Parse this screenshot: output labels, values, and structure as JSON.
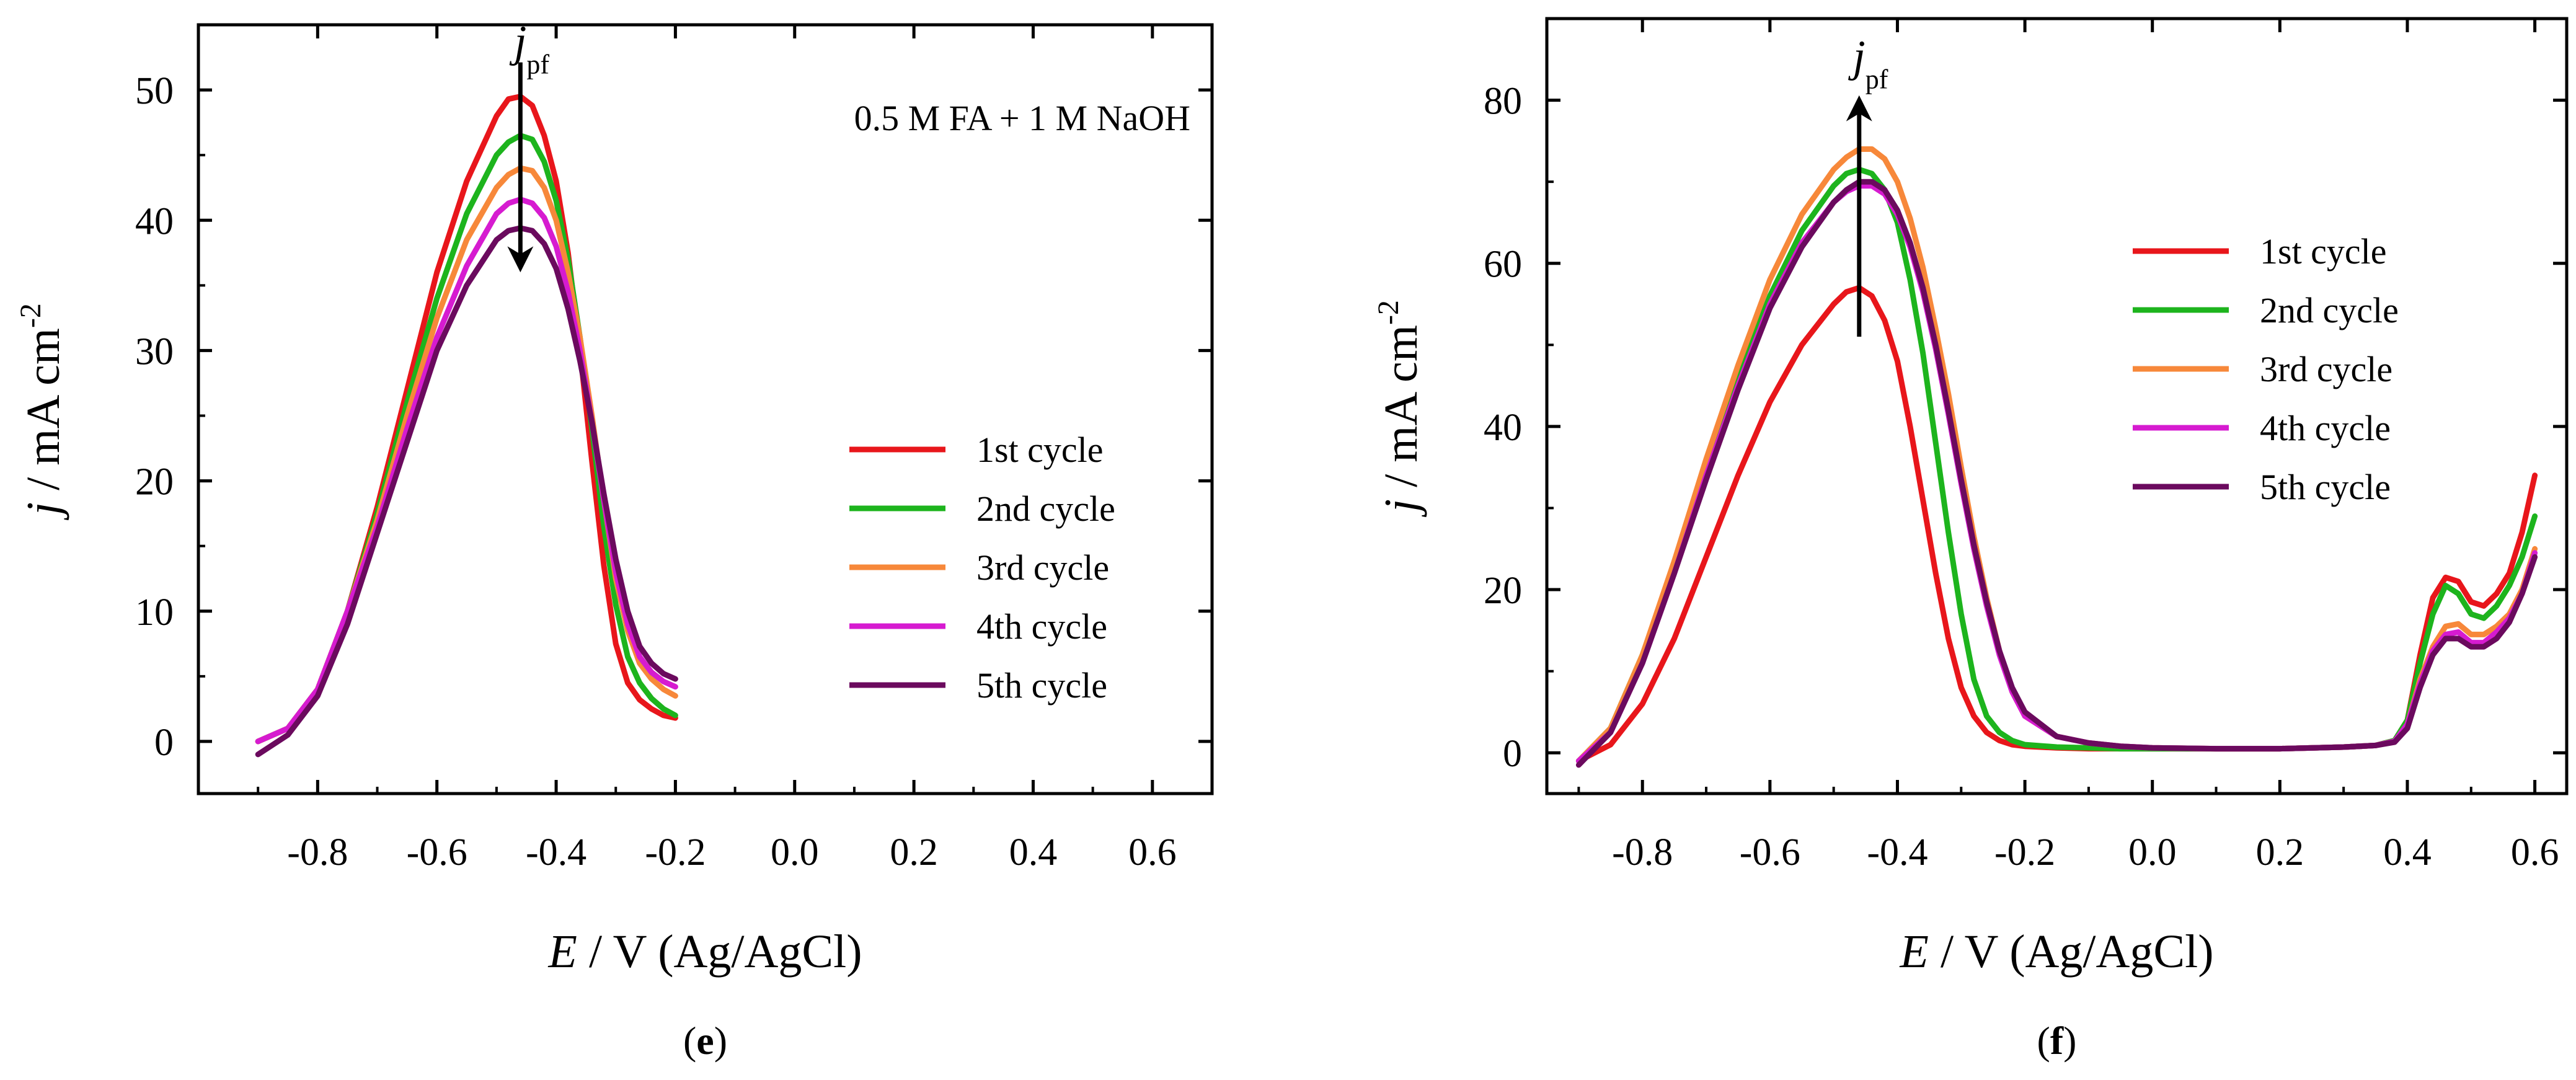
{
  "chart_data": [
    {
      "type": "line",
      "panel_label": "(e)",
      "panel_letter": "e",
      "annotation": "0.5 M FA + 1 M NaOH",
      "arrow_label": "j",
      "arrow_label_sub": "pf",
      "arrow_direction": "down",
      "xlabel_italic": "E",
      "xlabel_rest": " / V (Ag/AgCl)",
      "ylabel_italic": "j",
      "ylabel_rest": " / mA cm",
      "ylabel_sup": "-2",
      "xlim": [
        -1.0,
        0.7
      ],
      "ylim": [
        -4,
        55
      ],
      "xticks": [
        -0.8,
        -0.6,
        -0.4,
        -0.2,
        0.0,
        0.2,
        0.4,
        0.6
      ],
      "xtick_labels": [
        "-0.8",
        "-0.6",
        "-0.4",
        "-0.2",
        "0.0",
        "0.2",
        "0.4",
        "0.6"
      ],
      "yticks": [
        0,
        10,
        20,
        30,
        40,
        50
      ],
      "ytick_labels": [
        "0",
        "10",
        "20",
        "30",
        "40",
        "50"
      ],
      "legend_position": "center-right",
      "series": [
        {
          "name": "1st cycle",
          "color": "#e8161b",
          "x": [
            -0.9,
            -0.85,
            -0.8,
            -0.75,
            -0.7,
            -0.65,
            -0.6,
            -0.55,
            -0.5,
            -0.48,
            -0.46,
            -0.44,
            -0.42,
            -0.4,
            -0.38,
            -0.36,
            -0.34,
            -0.32,
            -0.3,
            -0.28,
            -0.26,
            -0.24,
            -0.22,
            -0.2
          ],
          "y": [
            0,
            1,
            4,
            10,
            18,
            27,
            36,
            43,
            48,
            49.3,
            49.5,
            48.8,
            46.5,
            43,
            37.5,
            30,
            21.5,
            13.5,
            7.5,
            4.5,
            3.2,
            2.5,
            2.0,
            1.8
          ]
        },
        {
          "name": "2nd cycle",
          "color": "#1db41d",
          "x": [
            -0.9,
            -0.85,
            -0.8,
            -0.75,
            -0.7,
            -0.65,
            -0.6,
            -0.55,
            -0.5,
            -0.48,
            -0.46,
            -0.44,
            -0.42,
            -0.4,
            -0.38,
            -0.36,
            -0.34,
            -0.32,
            -0.3,
            -0.28,
            -0.26,
            -0.24,
            -0.22,
            -0.2
          ],
          "y": [
            0,
            1,
            4,
            10,
            17.5,
            26,
            34,
            40.5,
            45,
            46,
            46.5,
            46.2,
            44.5,
            41.5,
            37,
            31,
            24,
            16.5,
            10.5,
            6.5,
            4.5,
            3.3,
            2.5,
            2.0
          ]
        },
        {
          "name": "3rd cycle",
          "color": "#f7883a",
          "x": [
            -0.9,
            -0.85,
            -0.8,
            -0.75,
            -0.7,
            -0.65,
            -0.6,
            -0.55,
            -0.5,
            -0.48,
            -0.46,
            -0.44,
            -0.42,
            -0.4,
            -0.38,
            -0.36,
            -0.34,
            -0.32,
            -0.3,
            -0.28,
            -0.26,
            -0.24,
            -0.22,
            -0.2
          ],
          "y": [
            0,
            1,
            4,
            10,
            17,
            25,
            32.5,
            38.5,
            42.5,
            43.5,
            44,
            43.8,
            42.5,
            40,
            36,
            31,
            25,
            18.5,
            12.5,
            8.5,
            6,
            4.8,
            4,
            3.5
          ]
        },
        {
          "name": "4th cycle",
          "color": "#d61bd0",
          "x": [
            -0.9,
            -0.85,
            -0.8,
            -0.75,
            -0.7,
            -0.65,
            -0.6,
            -0.55,
            -0.5,
            -0.48,
            -0.46,
            -0.44,
            -0.42,
            -0.4,
            -0.38,
            -0.36,
            -0.34,
            -0.32,
            -0.3,
            -0.28,
            -0.26,
            -0.24,
            -0.22,
            -0.2
          ],
          "y": [
            0,
            1,
            4,
            10,
            16.5,
            24,
            31,
            36.5,
            40.5,
            41.3,
            41.6,
            41.3,
            40.2,
            38,
            34.5,
            30,
            24.5,
            18.5,
            13,
            9,
            6.5,
            5.3,
            4.6,
            4.2
          ]
        },
        {
          "name": "5th cycle",
          "color": "#6b0a5e",
          "x": [
            -0.9,
            -0.85,
            -0.8,
            -0.75,
            -0.7,
            -0.65,
            -0.6,
            -0.55,
            -0.5,
            -0.48,
            -0.46,
            -0.44,
            -0.42,
            -0.4,
            -0.38,
            -0.36,
            -0.34,
            -0.32,
            -0.3,
            -0.28,
            -0.26,
            -0.24,
            -0.22,
            -0.2
          ],
          "y": [
            -1,
            0.5,
            3.5,
            9,
            16,
            23,
            30,
            35,
            38.5,
            39.2,
            39.4,
            39.2,
            38.2,
            36.3,
            33.2,
            29.2,
            24.5,
            19,
            14,
            10,
            7.3,
            6,
            5.2,
            4.8
          ]
        }
      ]
    },
    {
      "type": "line",
      "panel_label": "(f)",
      "panel_letter": "f",
      "annotation": "",
      "arrow_label": "j",
      "arrow_label_sub": "pf",
      "arrow_direction": "up",
      "xlabel_italic": "E",
      "xlabel_rest": " / V (Ag/AgCl)",
      "ylabel_italic": "j",
      "ylabel_rest": " / mA cm",
      "ylabel_sup": "-2",
      "xlim": [
        -0.95,
        0.65
      ],
      "ylim": [
        -5,
        90
      ],
      "xticks": [
        -0.8,
        -0.6,
        -0.4,
        -0.2,
        0.0,
        0.2,
        0.4,
        0.6
      ],
      "xtick_labels": [
        "-0.8",
        "-0.6",
        "-0.4",
        "-0.2",
        "0.0",
        "0.2",
        "0.4",
        "0.6"
      ],
      "yticks": [
        0,
        20,
        40,
        60,
        80
      ],
      "ytick_labels": [
        "0",
        "20",
        "40",
        "60",
        "80"
      ],
      "legend_position": "center-right",
      "series": [
        {
          "name": "1st cycle",
          "color": "#e8161b",
          "x": [
            -0.9,
            -0.85,
            -0.8,
            -0.75,
            -0.7,
            -0.65,
            -0.6,
            -0.55,
            -0.5,
            -0.48,
            -0.46,
            -0.44,
            -0.42,
            -0.4,
            -0.38,
            -0.36,
            -0.34,
            -0.32,
            -0.3,
            -0.28,
            -0.26,
            -0.24,
            -0.22,
            -0.2,
            -0.15,
            -0.1,
            -0.05,
            0.0,
            0.1,
            0.2,
            0.3,
            0.35,
            0.38,
            0.4,
            0.42,
            0.44,
            0.46,
            0.48,
            0.5,
            0.52,
            0.54,
            0.56,
            0.58,
            0.6
          ],
          "y": [
            -1,
            1,
            6,
            14,
            24,
            34,
            43,
            50,
            55,
            56.5,
            57,
            56,
            53,
            48,
            40,
            31,
            22,
            14,
            8,
            4.5,
            2.5,
            1.5,
            1.0,
            0.8,
            0.6,
            0.5,
            0.5,
            0.5,
            0.5,
            0.5,
            0.7,
            0.9,
            1.5,
            4,
            12,
            19,
            21.5,
            21,
            18.5,
            18,
            19.5,
            22,
            27,
            34
          ]
        },
        {
          "name": "2nd cycle",
          "color": "#1db41d",
          "x": [
            -0.9,
            -0.85,
            -0.8,
            -0.75,
            -0.7,
            -0.65,
            -0.6,
            -0.55,
            -0.5,
            -0.48,
            -0.46,
            -0.44,
            -0.42,
            -0.4,
            -0.38,
            -0.36,
            -0.34,
            -0.32,
            -0.3,
            -0.28,
            -0.26,
            -0.24,
            -0.22,
            -0.2,
            -0.15,
            -0.1,
            -0.05,
            0.0,
            0.1,
            0.2,
            0.3,
            0.35,
            0.38,
            0.4,
            0.42,
            0.44,
            0.46,
            0.48,
            0.5,
            0.52,
            0.54,
            0.56,
            0.58,
            0.6
          ],
          "y": [
            -1,
            3,
            12,
            23,
            35,
            46,
            56,
            64,
            69.5,
            71,
            71.5,
            71,
            69,
            65,
            58,
            49,
            38,
            27,
            17,
            9,
            4.5,
            2.5,
            1.5,
            1.0,
            0.7,
            0.6,
            0.5,
            0.5,
            0.5,
            0.5,
            0.7,
            0.9,
            1.5,
            4,
            11,
            17,
            20.5,
            19.5,
            17,
            16.5,
            18,
            20.5,
            24,
            29
          ]
        },
        {
          "name": "3rd cycle",
          "color": "#f7883a",
          "x": [
            -0.9,
            -0.85,
            -0.8,
            -0.75,
            -0.7,
            -0.65,
            -0.6,
            -0.55,
            -0.5,
            -0.48,
            -0.46,
            -0.44,
            -0.42,
            -0.4,
            -0.38,
            -0.36,
            -0.34,
            -0.32,
            -0.3,
            -0.28,
            -0.26,
            -0.24,
            -0.22,
            -0.2,
            -0.15,
            -0.1,
            -0.05,
            0.0,
            0.1,
            0.2,
            0.3,
            0.35,
            0.38,
            0.4,
            0.42,
            0.44,
            0.46,
            0.48,
            0.5,
            0.52,
            0.54,
            0.56,
            0.58,
            0.6
          ],
          "y": [
            -1,
            3,
            12,
            23.5,
            36,
            47.5,
            58,
            66,
            71.5,
            73,
            74,
            74,
            72.8,
            70,
            65.5,
            59.5,
            52,
            44,
            35,
            26.5,
            19,
            12.5,
            7.5,
            4.5,
            2,
            1.2,
            0.8,
            0.6,
            0.5,
            0.5,
            0.7,
            0.9,
            1.4,
            3.5,
            9,
            13,
            15.5,
            15.8,
            14.5,
            14.5,
            15.5,
            17,
            20,
            25
          ]
        },
        {
          "name": "4th cycle",
          "color": "#d61bd0",
          "x": [
            -0.9,
            -0.85,
            -0.8,
            -0.75,
            -0.7,
            -0.65,
            -0.6,
            -0.55,
            -0.5,
            -0.48,
            -0.46,
            -0.44,
            -0.42,
            -0.4,
            -0.38,
            -0.36,
            -0.34,
            -0.32,
            -0.3,
            -0.28,
            -0.26,
            -0.24,
            -0.22,
            -0.2,
            -0.15,
            -0.1,
            -0.05,
            0.0,
            0.1,
            0.2,
            0.3,
            0.35,
            0.38,
            0.4,
            0.42,
            0.44,
            0.46,
            0.48,
            0.5,
            0.52,
            0.54,
            0.56,
            0.58,
            0.6
          ],
          "y": [
            -1,
            2.5,
            11,
            22,
            34,
            45,
            55,
            62.5,
            67.5,
            68.8,
            69.5,
            69.5,
            68.5,
            66,
            62,
            56.5,
            49.5,
            41.5,
            33,
            25,
            18,
            12,
            7.5,
            4.5,
            2,
            1.2,
            0.8,
            0.6,
            0.5,
            0.5,
            0.7,
            0.9,
            1.4,
            3.5,
            8.5,
            12.5,
            14.5,
            14.8,
            13.5,
            13.5,
            14.8,
            16.5,
            19.5,
            24.5
          ]
        },
        {
          "name": "5th cycle",
          "color": "#6b0a5e",
          "x": [
            -0.9,
            -0.85,
            -0.8,
            -0.75,
            -0.7,
            -0.65,
            -0.6,
            -0.55,
            -0.5,
            -0.48,
            -0.46,
            -0.44,
            -0.42,
            -0.4,
            -0.38,
            -0.36,
            -0.34,
            -0.32,
            -0.3,
            -0.28,
            -0.26,
            -0.24,
            -0.22,
            -0.2,
            -0.15,
            -0.1,
            -0.05,
            0.0,
            0.1,
            0.2,
            0.3,
            0.35,
            0.38,
            0.4,
            0.42,
            0.44,
            0.46,
            0.48,
            0.5,
            0.52,
            0.54,
            0.56,
            0.58,
            0.6
          ],
          "y": [
            -1.5,
            2.5,
            11,
            22,
            33.5,
            44.5,
            54.5,
            62,
            67.5,
            69,
            70,
            70,
            69,
            66.5,
            62.5,
            57,
            50,
            42,
            33.5,
            25.5,
            18.5,
            12.5,
            8,
            5,
            2,
            1.2,
            0.8,
            0.6,
            0.5,
            0.5,
            0.7,
            0.9,
            1.3,
            3,
            8,
            12,
            14,
            14,
            13,
            13,
            14,
            16,
            19.5,
            24
          ]
        }
      ]
    }
  ]
}
